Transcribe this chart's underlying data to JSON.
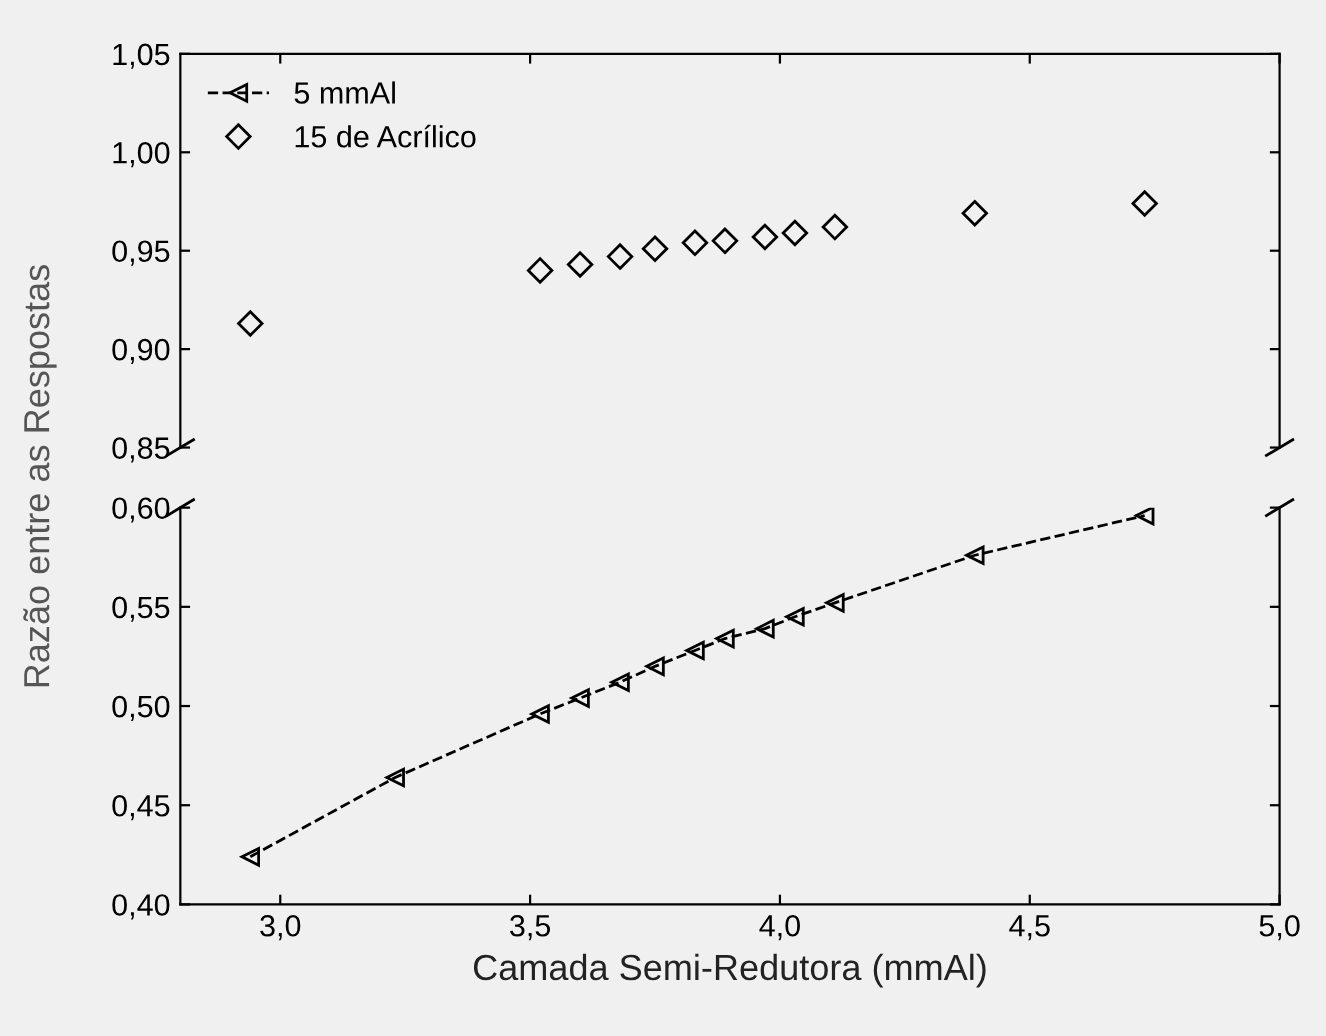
{
  "chart_data": [
    {
      "type": "scatter",
      "xlim": [
        2.8,
        5.0
      ],
      "ylim": [
        0.85,
        1.05
      ],
      "tick_labels": "y",
      "legend": "top left",
      "xticks": [
        {
          "value": 3.0,
          "label": null
        },
        {
          "value": 3.5,
          "label": null
        },
        {
          "value": 4.0,
          "label": null
        },
        {
          "value": 4.5,
          "label": null
        },
        {
          "value": 5.0,
          "label": null
        }
      ],
      "yticks": [
        {
          "value": 0.85,
          "label": "0,85"
        },
        {
          "value": 0.9,
          "label": "0,90"
        },
        {
          "value": 0.95,
          "label": "0,95"
        },
        {
          "value": 1.0,
          "label": "1,00"
        },
        {
          "value": 1.05,
          "label": "1,05"
        }
      ],
      "series": [
        {
          "name": "15 de Acrílico",
          "color": "#000000",
          "marker": "diamond",
          "x": [
            2.94,
            3.52,
            3.6,
            3.68,
            3.75,
            3.83,
            3.89,
            3.97,
            4.03,
            4.11,
            4.39,
            4.73
          ],
          "values": [
            0.913,
            0.94,
            0.943,
            0.947,
            0.951,
            0.954,
            0.955,
            0.957,
            0.959,
            0.962,
            0.969,
            0.974
          ]
        }
      ]
    },
    {
      "type": "line",
      "xlim": [
        2.8,
        5.0
      ],
      "ylim": [
        0.4,
        0.6
      ],
      "xlabel": "Camada Semi-Redutora (mmAl)",
      "ylabel": "Razão entre as Respostas",
      "xticks": [
        {
          "value": 3.0,
          "label": "3,0"
        },
        {
          "value": 3.5,
          "label": "3,5"
        },
        {
          "value": 4.0,
          "label": "4,0"
        },
        {
          "value": 4.5,
          "label": "4,5"
        },
        {
          "value": 5.0,
          "label": "5,0"
        }
      ],
      "yticks": [
        {
          "value": 0.4,
          "label": "0,40"
        },
        {
          "value": 0.45,
          "label": "0,45"
        },
        {
          "value": 0.5,
          "label": "0,50"
        },
        {
          "value": 0.55,
          "label": "0,55"
        },
        {
          "value": 0.6,
          "label": "0,60"
        }
      ],
      "series": [
        {
          "name": "5 mmAl",
          "color": "#000000",
          "marker": "triangle",
          "line_style": "dashed",
          "x": [
            2.94,
            3.23,
            3.52,
            3.6,
            3.68,
            3.75,
            3.83,
            3.89,
            3.97,
            4.03,
            4.11,
            4.39,
            4.73
          ],
          "values": [
            0.424,
            0.464,
            0.496,
            0.504,
            0.512,
            0.52,
            0.528,
            0.534,
            0.539,
            0.545,
            0.552,
            0.576,
            0.596
          ]
        }
      ]
    }
  ]
}
